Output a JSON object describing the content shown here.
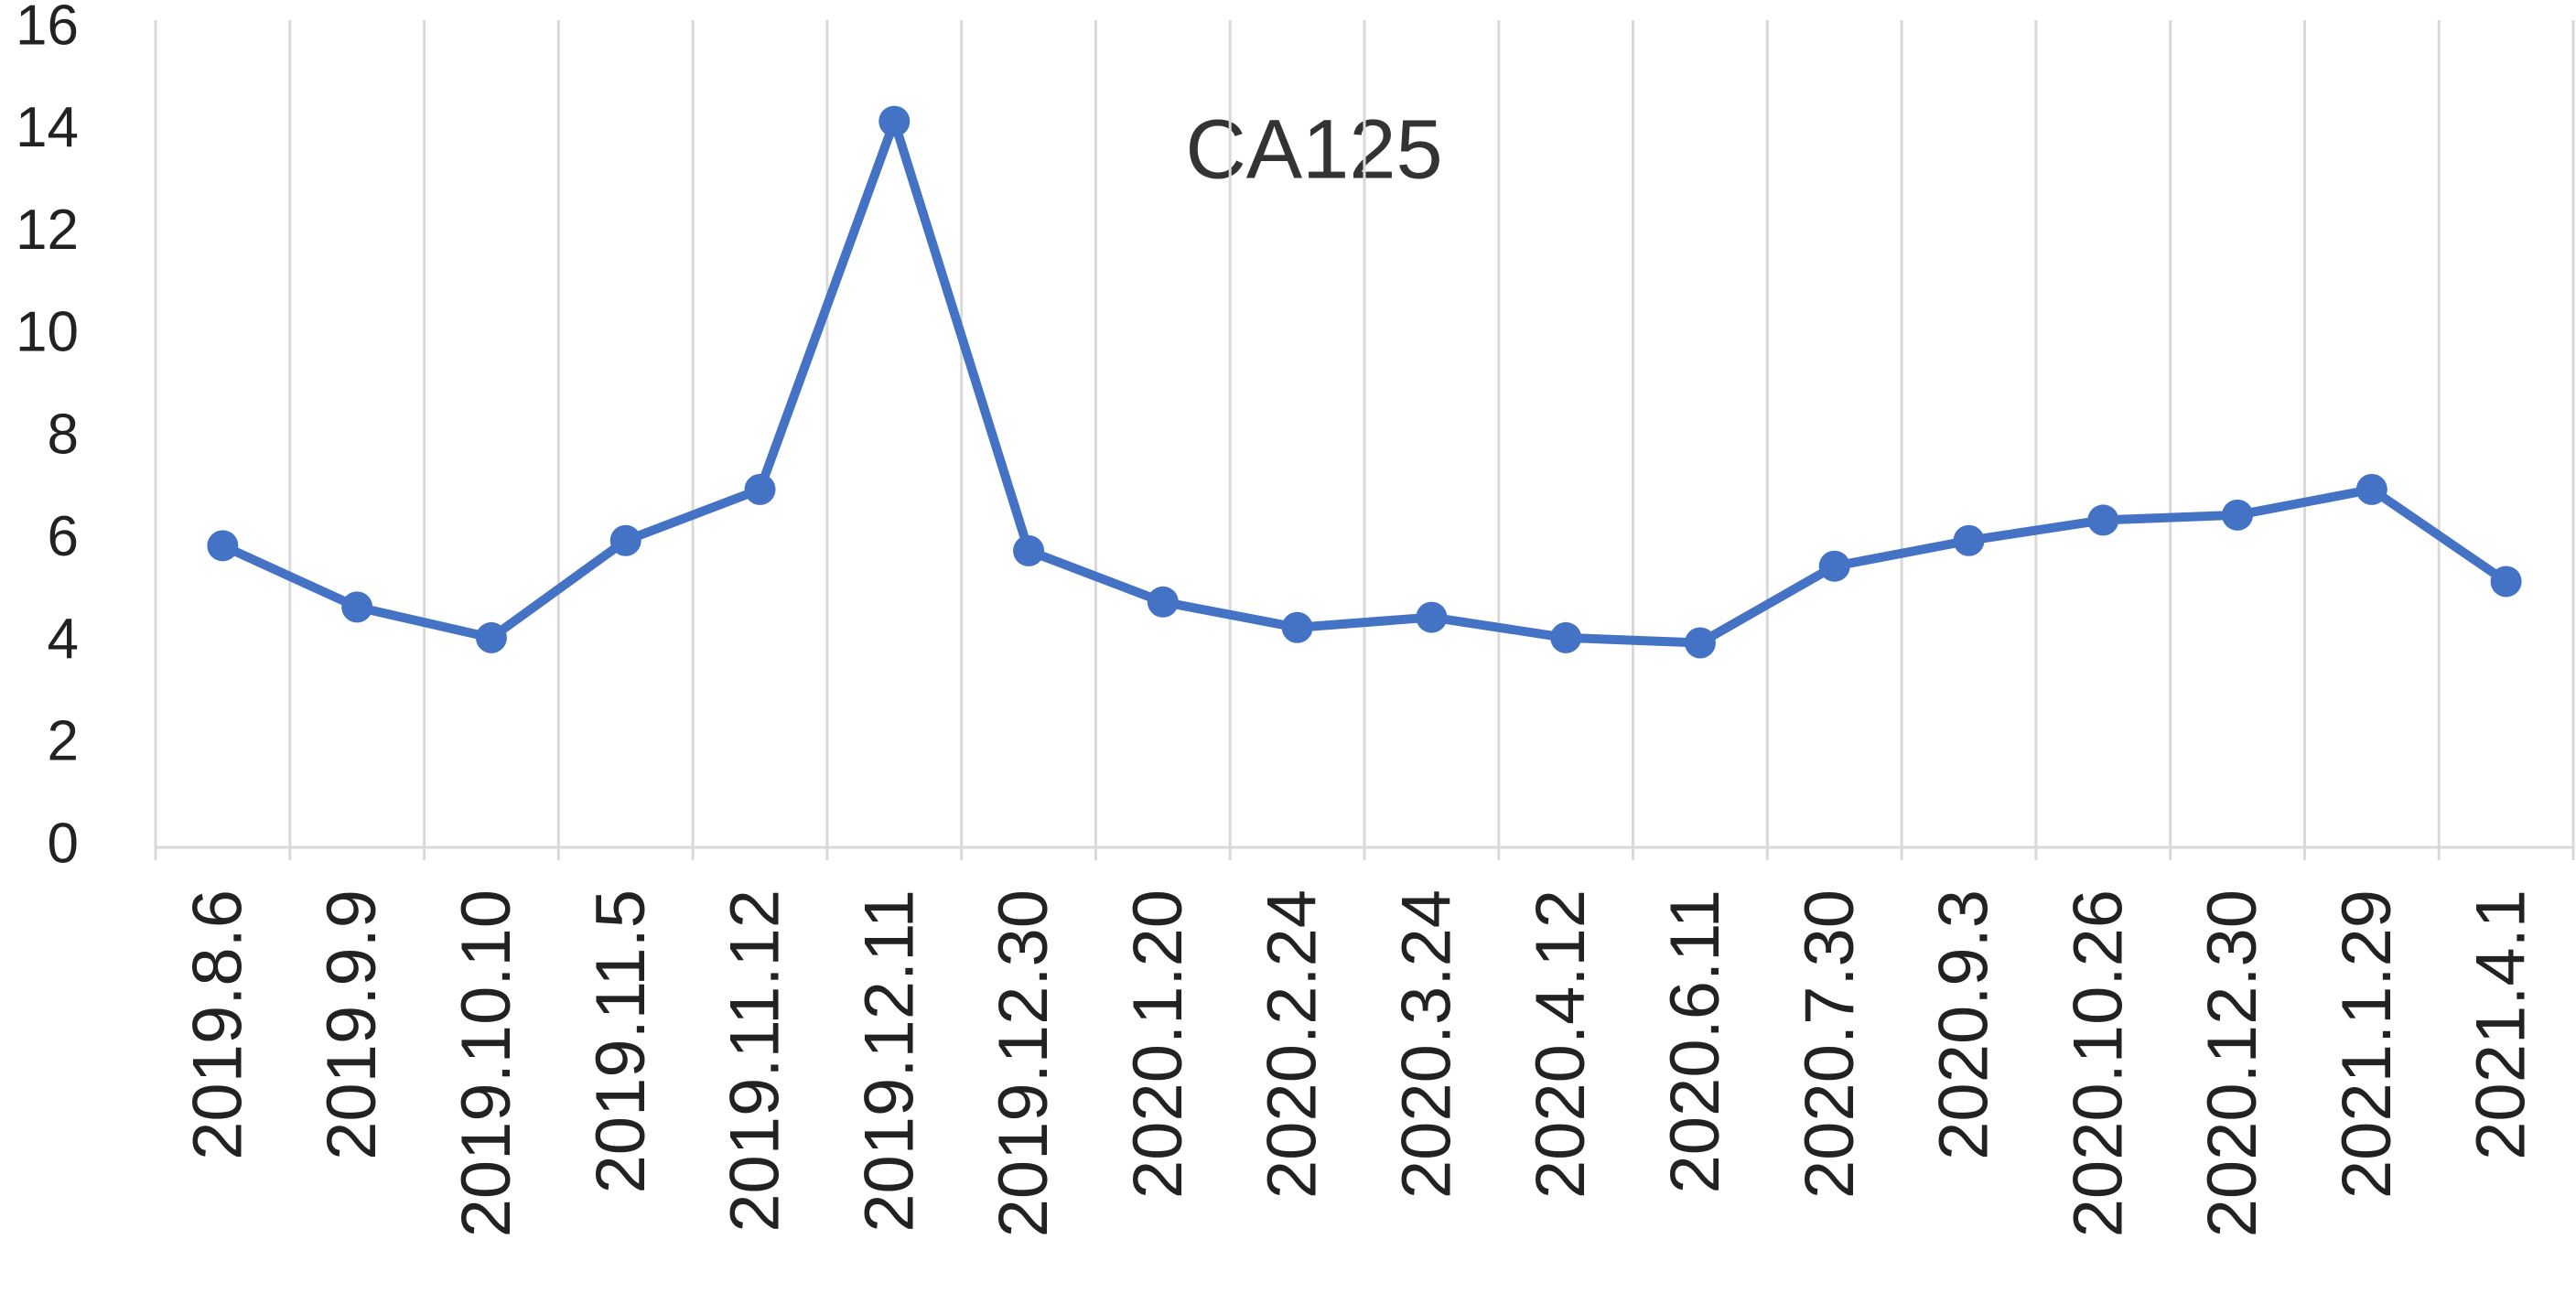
{
  "chart_data": {
    "type": "line",
    "title": "CA125",
    "categories": [
      "2019.8.6",
      "2019.9.9",
      "2019.10.10",
      "2019.11.5",
      "2019.11.12",
      "2019.12.11",
      "2019.12.30",
      "2020.1.20",
      "2020.2.24",
      "2020.3.24",
      "2020.4.12",
      "2020.6.11",
      "2020.7.30",
      "2020.9.3",
      "2020.10.26",
      "2020.12.30",
      "2021.1.29",
      "2021.4.1"
    ],
    "series": [
      {
        "name": "CA125",
        "color": "#4472c4",
        "values": [
          5.9,
          4.7,
          4.1,
          6.0,
          7.0,
          14.2,
          5.8,
          4.8,
          4.3,
          4.5,
          4.1,
          4.0,
          5.5,
          6.0,
          6.4,
          6.5,
          7.0,
          5.2
        ]
      }
    ],
    "ylim": [
      0,
      16
    ],
    "yticks": [
      0,
      2,
      4,
      6,
      8,
      10,
      12,
      14,
      16
    ]
  }
}
